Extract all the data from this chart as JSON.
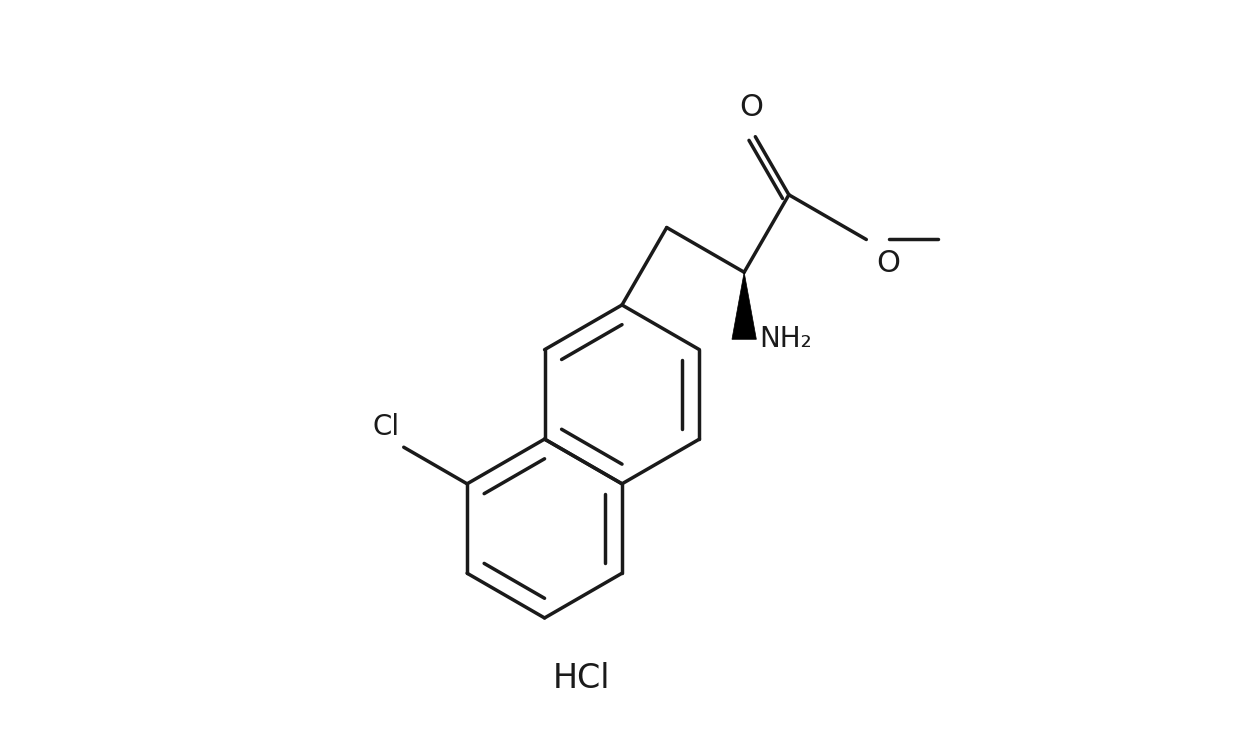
{
  "background_color": "#ffffff",
  "line_color": "#1a1a1a",
  "line_width": 2.5,
  "wedge_color": "#000000",
  "label_color": "#1a1a1a",
  "label_fontsize": 20,
  "hcl_label": "HCl",
  "hcl_fontsize": 24,
  "o_label": "O",
  "nh2_label": "NH₂",
  "cl_label": "Cl",
  "och3_label": "O",
  "fig_width": 12.44,
  "fig_height": 7.4
}
